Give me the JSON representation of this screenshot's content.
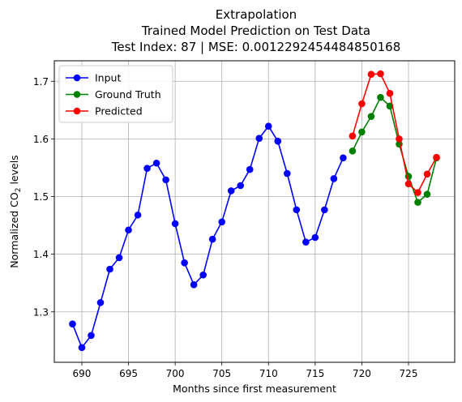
{
  "chart_data": {
    "type": "line",
    "title_lines": [
      "Extrapolation",
      "Trained Model Prediction on Test Data",
      "Test Index: 87 | MSE: 0.0012292454484850168"
    ],
    "xlabel": "Months since first measurement",
    "ylabel_prefix": "Normalized CO",
    "ylabel_sub": "2",
    "ylabel_suffix": " levels",
    "xlim": [
      687.05,
      729.95
    ],
    "ylim": [
      1.2125,
      1.7355
    ],
    "x_ticks": [
      690,
      695,
      700,
      705,
      710,
      715,
      720,
      725
    ],
    "y_ticks": [
      1.3,
      1.4,
      1.5,
      1.6,
      1.7
    ],
    "y_tick_labels": [
      "1.3",
      "1.4",
      "1.5",
      "1.6",
      "1.7"
    ],
    "grid": true,
    "legend_position": "upper-left",
    "series": [
      {
        "name": "Input",
        "color": "#0000ff",
        "x": [
          689,
          690,
          691,
          692,
          693,
          694,
          695,
          696,
          697,
          698,
          699,
          700,
          701,
          702,
          703,
          704,
          705,
          706,
          707,
          708,
          709,
          710,
          711,
          712,
          713,
          714,
          715,
          716,
          717,
          718
        ],
        "y": [
          1.279,
          1.238,
          1.259,
          1.316,
          1.374,
          1.394,
          1.442,
          1.468,
          1.549,
          1.558,
          1.529,
          1.453,
          1.385,
          1.347,
          1.364,
          1.426,
          1.456,
          1.51,
          1.519,
          1.547,
          1.601,
          1.622,
          1.596,
          1.54,
          1.477,
          1.421,
          1.429,
          1.477,
          1.531,
          1.567
        ]
      },
      {
        "name": "Ground Truth",
        "color": "#008000",
        "x": [
          719,
          720,
          721,
          722,
          723,
          724,
          725,
          726,
          727,
          728
        ],
        "y": [
          1.579,
          1.612,
          1.639,
          1.672,
          1.657,
          1.591,
          1.535,
          1.49,
          1.504,
          1.567
        ]
      },
      {
        "name": "Predicted",
        "color": "#ff0000",
        "x": [
          719,
          720,
          721,
          722,
          723,
          724,
          725,
          726,
          727,
          728
        ],
        "y": [
          1.605,
          1.661,
          1.712,
          1.713,
          1.679,
          1.6,
          1.522,
          1.507,
          1.539,
          1.568
        ]
      }
    ]
  }
}
